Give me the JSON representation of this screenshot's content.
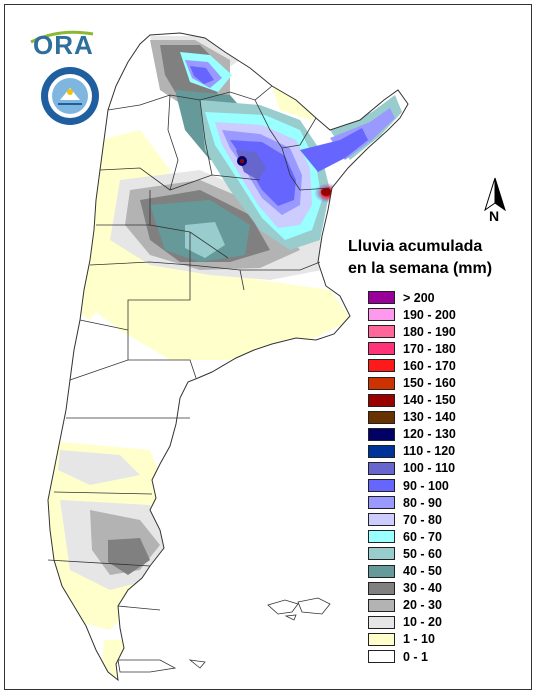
{
  "logo": {
    "name": "ORA",
    "seal_text": "SERVICIO METEOROLÓGICO NACIONAL · ARGENTINA"
  },
  "north_label": "N",
  "legend": {
    "title_line1": "Lluvia acumulada",
    "title_line2": "en la semana (mm)",
    "items": [
      {
        "label": "> 200",
        "color": "#990099"
      },
      {
        "label": "190 - 200",
        "color": "#ff99ee"
      },
      {
        "label": "180 - 190",
        "color": "#ff6699"
      },
      {
        "label": "170 - 180",
        "color": "#ff3377"
      },
      {
        "label": "160 - 170",
        "color": "#ff1a1a"
      },
      {
        "label": "150 - 160",
        "color": "#cc3300"
      },
      {
        "label": "140 - 150",
        "color": "#990000"
      },
      {
        "label": "130 - 140",
        "color": "#663300"
      },
      {
        "label": "120 - 130",
        "color": "#000066"
      },
      {
        "label": "110 - 120",
        "color": "#003399"
      },
      {
        "label": "100 - 110",
        "color": "#6666cc"
      },
      {
        "label": "90 - 100",
        "color": "#6666ff"
      },
      {
        "label": "80 - 90",
        "color": "#9999ff"
      },
      {
        "label": "70 - 80",
        "color": "#ccccff"
      },
      {
        "label": "60 - 70",
        "color": "#99ffff"
      },
      {
        "label": "50 - 60",
        "color": "#99cccc"
      },
      {
        "label": "40 - 50",
        "color": "#669999"
      },
      {
        "label": "30 - 40",
        "color": "#808080"
      },
      {
        "label": "20 - 30",
        "color": "#b3b3b3"
      },
      {
        "label": "10 - 20",
        "color": "#e6e6e6"
      },
      {
        "label": "1 - 10",
        "color": "#ffffcc"
      },
      {
        "label": "0 - 1",
        "color": "#ffffff"
      }
    ]
  }
}
